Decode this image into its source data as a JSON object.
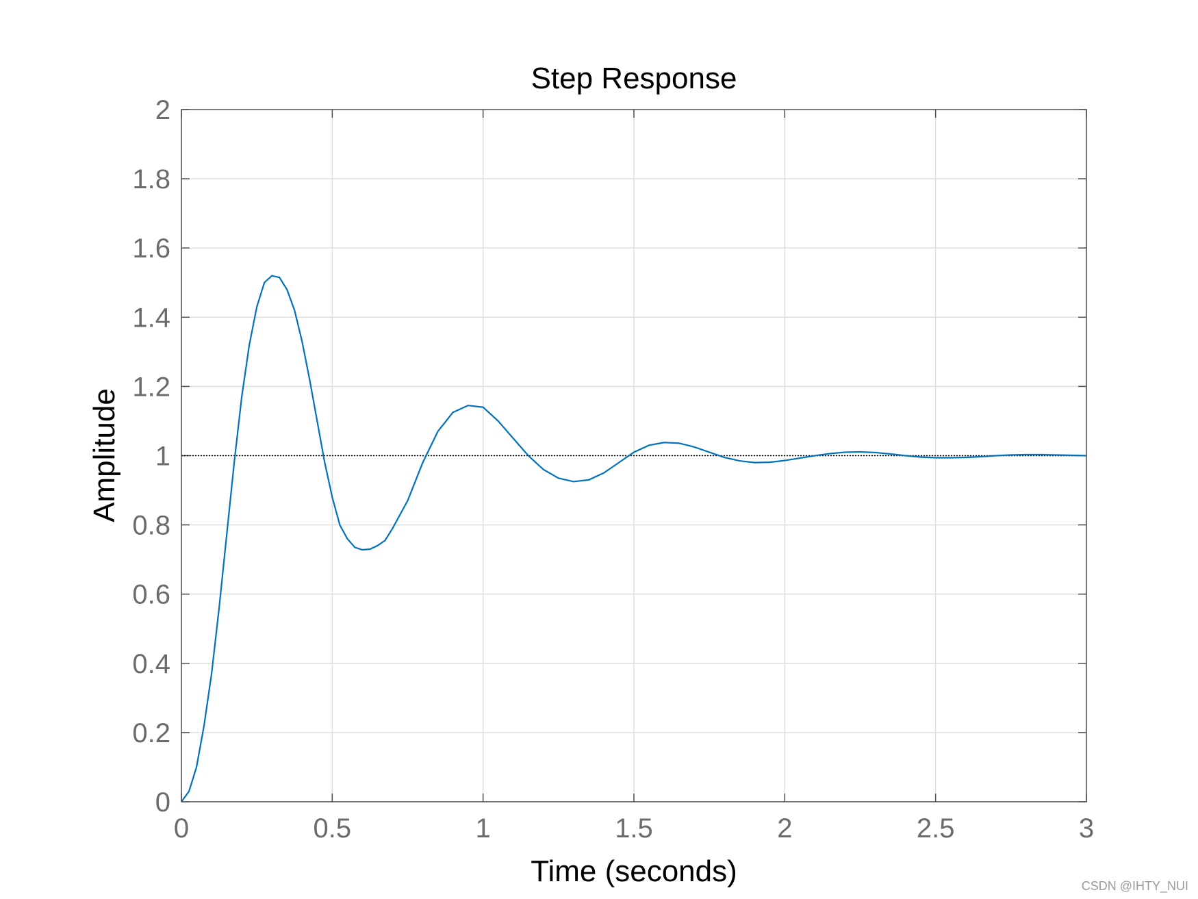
{
  "chart_data": {
    "type": "line",
    "title": "Step Response",
    "xlabel": "Time (seconds)",
    "ylabel": "Amplitude",
    "xlim": [
      0,
      3
    ],
    "ylim": [
      0,
      2
    ],
    "xticks": [
      0,
      0.5,
      1,
      1.5,
      2,
      2.5,
      3
    ],
    "xtick_labels": [
      "0",
      "0.5",
      "1",
      "1.5",
      "2",
      "2.5",
      "3"
    ],
    "yticks": [
      0,
      0.2,
      0.4,
      0.6,
      0.8,
      1,
      1.2,
      1.4,
      1.6,
      1.8,
      2
    ],
    "ytick_labels": [
      "0",
      "0.2",
      "0.4",
      "0.6",
      "0.8",
      "1",
      "1.2",
      "1.4",
      "1.6",
      "1.8",
      "2"
    ],
    "grid": true,
    "reference_line": {
      "y": 1,
      "style": "dotted",
      "color": "#000000"
    },
    "series": [
      {
        "color": "#0072bd",
        "x": [
          0,
          0.025,
          0.05,
          0.075,
          0.1,
          0.125,
          0.15,
          0.175,
          0.2,
          0.225,
          0.25,
          0.275,
          0.3,
          0.325,
          0.35,
          0.375,
          0.4,
          0.425,
          0.45,
          0.475,
          0.5,
          0.525,
          0.55,
          0.575,
          0.6,
          0.625,
          0.65,
          0.675,
          0.7,
          0.75,
          0.8,
          0.85,
          0.9,
          0.95,
          1.0,
          1.05,
          1.1,
          1.15,
          1.2,
          1.25,
          1.3,
          1.35,
          1.4,
          1.45,
          1.5,
          1.55,
          1.6,
          1.65,
          1.7,
          1.75,
          1.8,
          1.85,
          1.9,
          1.95,
          2.0,
          2.05,
          2.1,
          2.15,
          2.2,
          2.25,
          2.3,
          2.35,
          2.4,
          2.45,
          2.5,
          2.55,
          2.6,
          2.65,
          2.7,
          2.75,
          2.8,
          2.85,
          2.9,
          2.95,
          3.0
        ],
        "y": [
          0,
          0.03,
          0.1,
          0.22,
          0.37,
          0.56,
          0.77,
          0.98,
          1.17,
          1.32,
          1.43,
          1.5,
          1.52,
          1.515,
          1.48,
          1.42,
          1.33,
          1.22,
          1.1,
          0.98,
          0.88,
          0.8,
          0.76,
          0.735,
          0.728,
          0.73,
          0.74,
          0.755,
          0.79,
          0.87,
          0.98,
          1.07,
          1.125,
          1.145,
          1.14,
          1.1,
          1.05,
          1.0,
          0.96,
          0.935,
          0.925,
          0.93,
          0.95,
          0.98,
          1.01,
          1.03,
          1.038,
          1.036,
          1.025,
          1.01,
          0.995,
          0.985,
          0.98,
          0.981,
          0.986,
          0.993,
          1.0,
          1.006,
          1.01,
          1.011,
          1.009,
          1.005,
          1.0,
          0.996,
          0.994,
          0.994,
          0.995,
          0.997,
          1.0,
          1.002,
          1.003,
          1.003,
          1.002,
          1.001,
          1.0
        ]
      }
    ]
  },
  "watermark": "CSDN @IHTY_NUI"
}
